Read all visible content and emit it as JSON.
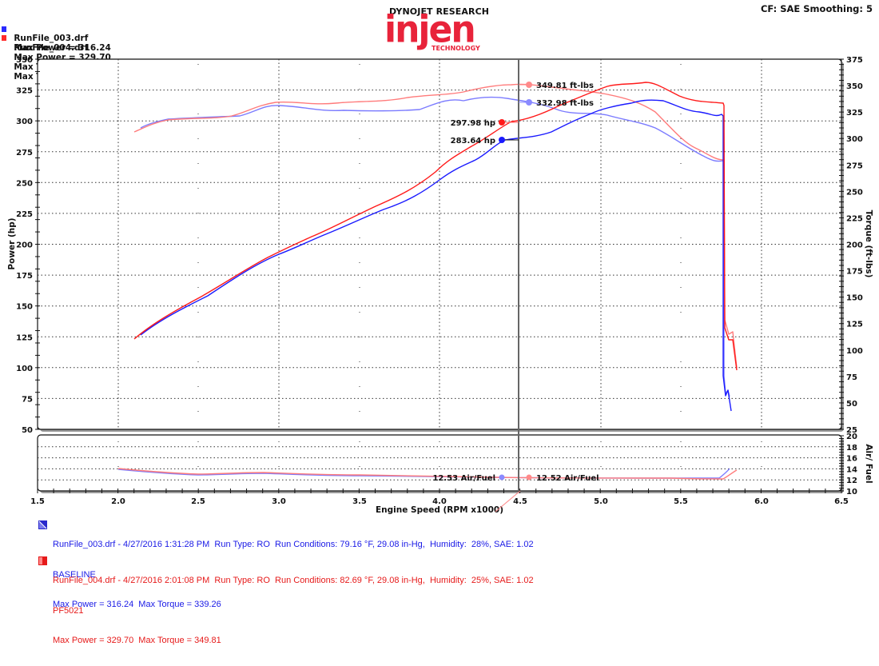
{
  "header": {
    "runs": [
      {
        "file": "RunFile_003.drf",
        "max_power_label": "Max Power = 316.24",
        "max_torque_label": "Max Torque = 339.26",
        "color": "#1a1aff"
      },
      {
        "file": "RunFile_004.drf",
        "max_power_label": "Max Power = 329.70",
        "max_torque_label": "Max Torque = 349.81",
        "color": "#ff1a1a"
      }
    ],
    "logo_top": "DYNOJET RESEARCH",
    "logo_main": "injen",
    "logo_sub": "TECHNOLOGY",
    "settings": "CF: SAE  Smoothing: 5"
  },
  "legend": [
    {
      "line1": "RunFile_003.drf - 4/27/2016 1:31:28 PM  Run Type: RO  Run Conditions: 79.16 °F, 29.08 in-Hg,  Humidity:  28%, SAE: 1.02",
      "line2": "BASELINE",
      "line3": "Max Power = 316.24  Max Torque = 339.26",
      "color": "#1a1ae6"
    },
    {
      "line1": "RunFile_004.drf - 4/27/2016 2:01:08 PM  Run Type: RO  Run Conditions: 82.69 °F, 29.08 in-Hg,  Humidity:  25%, SAE: 1.02",
      "line2": "PF5021",
      "line3": "Max Power = 329.70  Max Torque = 349.81",
      "color": "#e61a1a"
    }
  ],
  "cursor": {
    "rpm": 4.5,
    "labels": {
      "torque_red": "349.81 ft-lbs",
      "torque_blue": "332.98 ft-lbs",
      "power_red": "297.98 hp",
      "power_blue": "283.64 hp",
      "afr_blue": "12.53 Air/Fuel",
      "afr_red": "12.52 Air/Fuel"
    }
  },
  "axes": {
    "x_label": "Engine Speed (RPM x1000)",
    "x_ticks": [
      "1.5",
      "2.0",
      "2.5",
      "3.0",
      "3.5",
      "4.0",
      "4.5",
      "5.0",
      "5.5",
      "6.0",
      "6.5"
    ],
    "power_label": "Power (hp)",
    "power_ticks": [
      "350",
      "325",
      "300",
      "275",
      "250",
      "225",
      "200",
      "175",
      "150",
      "125",
      "100",
      "75",
      "50"
    ],
    "torque_label": "Torque (ft-lbs)",
    "torque_ticks": [
      "375",
      "350",
      "325",
      "300",
      "275",
      "250",
      "225",
      "200",
      "175",
      "150",
      "125",
      "100",
      "75",
      "50",
      "25"
    ],
    "afr_label": "Air/ Fuel",
    "afr_ticks": [
      "20",
      "18",
      "16",
      "14",
      "12",
      "10"
    ]
  },
  "chart_data": {
    "type": "line",
    "title": "DYNOJET RESEARCH - Injen Technology dyno comparison",
    "xlabel": "Engine Speed (RPM x1000)",
    "ylabel": "Power (hp)",
    "y2label": "Torque (ft-lbs)",
    "y3label": "Air/ Fuel",
    "xlim": [
      1.5,
      6.5
    ],
    "ylim": [
      50,
      350
    ],
    "y2lim": [
      25,
      375
    ],
    "y3lim": [
      10,
      20
    ],
    "grid": true,
    "legend_position": "bottom",
    "x": [
      2.1,
      2.25,
      2.5,
      2.75,
      3.0,
      3.25,
      3.5,
      3.75,
      4.0,
      4.25,
      4.5,
      4.75,
      5.0,
      5.25,
      5.5,
      5.75
    ],
    "series": [
      {
        "name": "RunFile_003 Power (BASELINE)",
        "axis": "power",
        "color": "#1a1aff",
        "values": [
          125,
          138,
          153,
          168,
          188,
          203,
          220,
          238,
          258,
          278,
          284,
          294,
          308,
          316,
          308,
          300
        ]
      },
      {
        "name": "RunFile_004 Power (PF5021)",
        "axis": "power",
        "color": "#ff1a1a",
        "values": [
          122,
          137,
          152,
          169,
          192,
          210,
          226,
          246,
          268,
          290,
          298,
          312,
          322,
          330,
          322,
          320
        ]
      },
      {
        "name": "RunFile_003 Torque (BASELINE)",
        "axis": "torque",
        "color": "#7a7aff",
        "values": [
          294,
          303,
          305,
          310,
          318,
          314,
          317,
          322,
          328,
          334,
          333,
          327,
          325,
          313,
          295,
          278
        ]
      },
      {
        "name": "RunFile_004 Torque (PF5021)",
        "axis": "torque",
        "color": "#ff7a7a",
        "values": [
          291,
          303,
          305,
          312,
          322,
          322,
          326,
          331,
          340,
          348,
          350,
          341,
          331,
          318,
          303,
          286
        ]
      },
      {
        "name": "RunFile_003 Air/Fuel (BASELINE)",
        "axis": "afr",
        "color": "#7a7aff",
        "values": [
          13.8,
          13.4,
          13.1,
          13.0,
          13.1,
          13.0,
          12.9,
          12.8,
          12.7,
          12.6,
          12.53,
          12.5,
          12.5,
          12.5,
          12.5,
          13.2
        ]
      },
      {
        "name": "RunFile_004 Air/Fuel (PF5021)",
        "axis": "afr",
        "color": "#ff7a7a",
        "values": [
          13.8,
          13.5,
          13.2,
          13.1,
          13.3,
          13.1,
          13.0,
          12.9,
          12.8,
          12.6,
          12.52,
          12.4,
          12.4,
          12.4,
          12.4,
          12.8
        ]
      }
    ],
    "peak_annotations": {
      "max_power": {
        "RunFile_003": 316.24,
        "RunFile_004": 329.7
      },
      "max_torque": {
        "RunFile_003": 339.26,
        "RunFile_004": 349.81
      }
    },
    "cursor_values_at_4.5": {
      "power": {
        "RunFile_003": 283.64,
        "RunFile_004": 297.98
      },
      "torque": {
        "RunFile_003": 332.98,
        "RunFile_004": 349.81
      },
      "afr": {
        "RunFile_003": 12.53,
        "RunFile_004": 12.52
      }
    }
  }
}
